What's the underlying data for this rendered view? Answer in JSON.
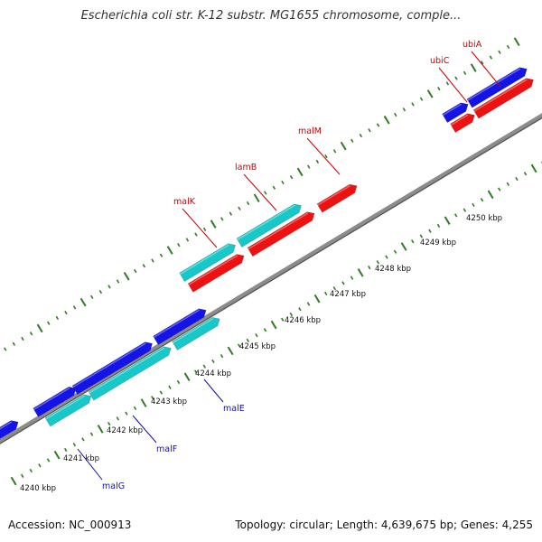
{
  "title": "Escherichia coli str. K-12 substr. MG1655 chromosome, comple...",
  "footer": {
    "accession": "Accession: NC_000913",
    "summary": "Topology: circular; Length: 4,639,675 bp; Genes: 4,255"
  },
  "colors": {
    "backbone": "#8c8c8c",
    "tick": "#2e7d1f",
    "forward_gene": "#1414e6",
    "forward_label": "#cc0000",
    "reverse_gene": "#18c8c8",
    "reverse_label": "#1010aa",
    "gene_red": "#ee1111"
  },
  "scale_labels": [
    "4240 kbp",
    "4241 kbp",
    "4242 kbp",
    "4243 kbp",
    "4244 kbp",
    "4245 kbp",
    "4246 kbp",
    "4247 kbp",
    "4248 kbp",
    "4249 kbp",
    "4250 kbp"
  ],
  "upper_labels": [
    "malK",
    "lamB",
    "malM",
    "ubiC",
    "ubiA"
  ],
  "lower_labels": [
    "malE",
    "malF",
    "malG"
  ]
}
